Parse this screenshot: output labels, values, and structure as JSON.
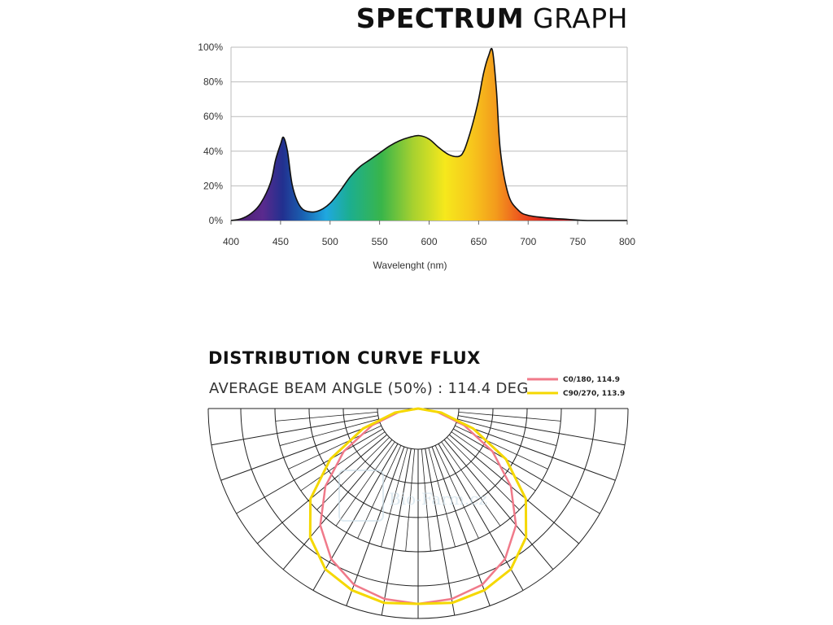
{
  "spectrum": {
    "title_bold": "SPECTRUM",
    "title_light": "GRAPH"
  },
  "distribution": {
    "title": "DISTRIBUTION CURVE FLUX",
    "subtitle": "AVERAGE BEAM ANGLE  (50%) : 114.4 DEG",
    "watermark": "Bio-Farm.cz"
  },
  "colors": {
    "c0_series": "#f07a8a",
    "c90_series": "#f5d800",
    "grid": "#bbbbbb",
    "polar_grid": "#222222",
    "background": "#ffffff"
  },
  "chart_data": [
    {
      "type": "area",
      "xlabel": "Wavelenght (nm)",
      "ylabel": "",
      "xlim": [
        400,
        800
      ],
      "ylim": [
        0,
        100
      ],
      "x_ticks": [
        400,
        450,
        500,
        550,
        600,
        650,
        700,
        750,
        800
      ],
      "y_ticks": [
        0,
        20,
        40,
        60,
        80,
        100
      ],
      "y_tick_labels": [
        "0%",
        "20%",
        "40%",
        "60%",
        "80%",
        "100%"
      ],
      "grid": true,
      "fill": "visible spectrum gradient",
      "x": [
        400,
        410,
        420,
        430,
        440,
        445,
        450,
        453,
        457,
        462,
        470,
        480,
        490,
        500,
        510,
        520,
        530,
        540,
        550,
        560,
        570,
        580,
        590,
        600,
        610,
        620,
        630,
        635,
        640,
        645,
        650,
        655,
        660,
        664,
        668,
        672,
        680,
        690,
        700,
        720,
        740,
        760,
        800
      ],
      "y": [
        0,
        1,
        4,
        10,
        22,
        35,
        44,
        48,
        40,
        20,
        8,
        5,
        6,
        10,
        17,
        25,
        31,
        35,
        39,
        43,
        46,
        48,
        49,
        47,
        42,
        38,
        37,
        40,
        48,
        58,
        70,
        85,
        95,
        98,
        75,
        40,
        15,
        6,
        3,
        1.5,
        0.7,
        0,
        0
      ]
    },
    {
      "type": "polar",
      "title": "DISTRIBUTION CURVE FLUX",
      "series": [
        {
          "name": "C0/180, 114.9",
          "color": "#f07a8a",
          "angles_deg": [
            -90,
            -80,
            -70,
            -60,
            -50,
            -40,
            -30,
            -20,
            -10,
            0,
            10,
            20,
            30,
            40,
            50,
            60,
            70,
            80,
            90
          ],
          "intensity": [
            0,
            10,
            25,
            44,
            62,
            78,
            89,
            96,
            99,
            100,
            99,
            96,
            89,
            78,
            62,
            44,
            25,
            10,
            0
          ]
        },
        {
          "name": "C90/270, 113.9",
          "color": "#f5d800",
          "angles_deg": [
            -90,
            -80,
            -70,
            -60,
            -50,
            -40,
            -30,
            -20,
            -10,
            0,
            10,
            20,
            30,
            40,
            50,
            60,
            70,
            80,
            90
          ],
          "intensity": [
            0,
            12,
            30,
            52,
            72,
            86,
            95,
            99,
            101,
            100,
            101,
            99,
            95,
            86,
            72,
            52,
            30,
            12,
            0
          ]
        }
      ]
    }
  ]
}
